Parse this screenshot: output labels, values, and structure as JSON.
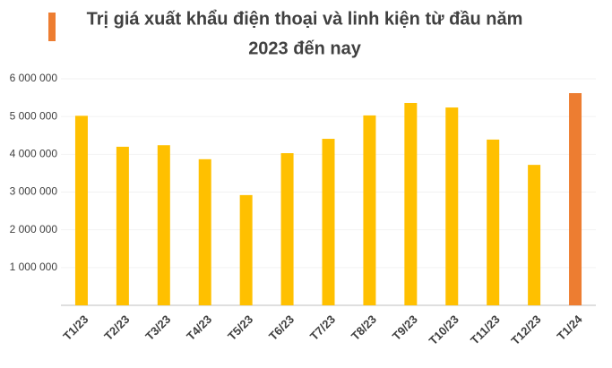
{
  "chart_data": {
    "type": "bar",
    "title": [
      "Trị giá xuất khẩu điện thoại và linh kiện từ đầu năm",
      "2023 đến nay"
    ],
    "categories": [
      "T1/23",
      "T2/23",
      "T3/23",
      "T4/23",
      "T5/23",
      "T6/23",
      "T7/23",
      "T8/23",
      "T9/23",
      "T10/23",
      "T11/23",
      "T12/23",
      "T1/24"
    ],
    "values": [
      5020000,
      4200000,
      4240000,
      3870000,
      2920000,
      4030000,
      4410000,
      5030000,
      5360000,
      5240000,
      4390000,
      3720000,
      5620000
    ],
    "colors": [
      "#FFC000",
      "#FFC000",
      "#FFC000",
      "#FFC000",
      "#FFC000",
      "#FFC000",
      "#FFC000",
      "#FFC000",
      "#FFC000",
      "#FFC000",
      "#FFC000",
      "#FFC000",
      "#ED7D31"
    ],
    "ylim": [
      0,
      6000000
    ],
    "yticks": [
      {
        "value": 1000000,
        "label": "1 000 000"
      },
      {
        "value": 2000000,
        "label": "2 000 000"
      },
      {
        "value": 3000000,
        "label": "3 000 000"
      },
      {
        "value": 4000000,
        "label": "4 000 000"
      },
      {
        "value": 5000000,
        "label": "5 000 000"
      },
      {
        "value": 6000000,
        "label": "6 000 000"
      }
    ],
    "grid": true
  }
}
